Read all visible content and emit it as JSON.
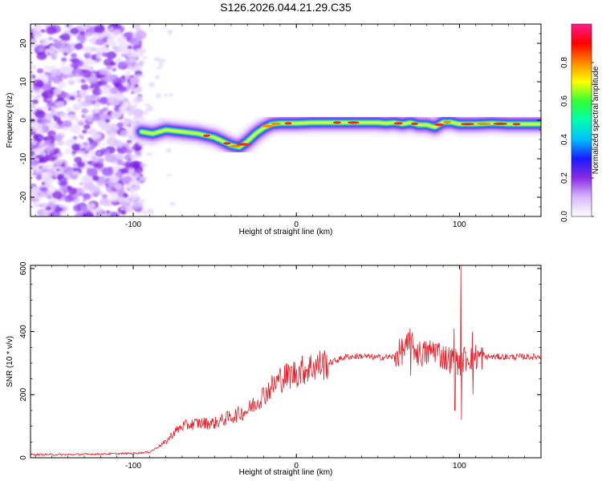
{
  "title": "S126.2026.044.21.29.C35",
  "chart_data": [
    {
      "type": "heatmap",
      "title": "S126.2026.044.21.29.C35",
      "xlabel": "Height of straight line (km)",
      "ylabel": "Frequency (Hz)",
      "xlim": [
        -163,
        150
      ],
      "ylim": [
        -25,
        25
      ],
      "xticks": [
        -100,
        0,
        100
      ],
      "yticks": [
        -20,
        -10,
        0,
        10,
        20
      ],
      "colorbar": {
        "label": "Normalized spectral amplitude",
        "range": [
          0,
          1
        ],
        "ticks": [
          0.0,
          0.2,
          0.4,
          0.6,
          0.8
        ],
        "colors": [
          "#ffffff",
          "#d9b8ff",
          "#8a2be2",
          "#1a1aff",
          "#00bfff",
          "#00ffb0",
          "#33ff33",
          "#ffff00",
          "#ff8800",
          "#ff0000",
          "#ff1a8c"
        ]
      },
      "noise_region_x": [
        -163,
        -95
      ],
      "ridge": {
        "x": [
          -95,
          -88,
          -80,
          -70,
          -60,
          -50,
          -45,
          -40,
          -35,
          -30,
          -25,
          -20,
          -15,
          -10,
          0,
          10,
          20,
          30,
          40,
          50,
          55,
          60,
          65,
          70,
          75,
          80,
          85,
          90,
          95,
          100,
          110,
          120,
          130,
          140,
          150
        ],
        "frequency": [
          -3,
          -3.5,
          -2.5,
          -3,
          -3.5,
          -4.5,
          -5.5,
          -6.5,
          -7,
          -5.5,
          -3.5,
          -2,
          -1,
          -0.8,
          -0.8,
          -0.6,
          -0.6,
          -0.6,
          -0.6,
          -0.6,
          -0.8,
          -0.6,
          -1,
          -0.6,
          -1.2,
          -1.2,
          -1.8,
          -0.5,
          -0.5,
          -1,
          -1,
          -0.8,
          -1,
          -1,
          -1
        ]
      }
    },
    {
      "type": "line",
      "xlabel": "Height of straight line (km)",
      "ylabel": "SNR (10 * v/v)",
      "xlim": [
        -163,
        150
      ],
      "ylim": [
        0,
        610
      ],
      "xticks": [
        -100,
        0,
        100
      ],
      "yticks": [
        0,
        200,
        400,
        600
      ],
      "series": [
        {
          "name": "SNR",
          "color": "#e8202a",
          "x": [
            -163,
            -140,
            -120,
            -100,
            -90,
            -80,
            -75,
            -70,
            -60,
            -50,
            -40,
            -30,
            -20,
            -10,
            0,
            10,
            20,
            30,
            40,
            50,
            60,
            65,
            70,
            75,
            80,
            85,
            90,
            95,
            100,
            105,
            110,
            120,
            130,
            140,
            150
          ],
          "values": [
            10,
            10,
            12,
            14,
            18,
            50,
            80,
            100,
            110,
            110,
            130,
            150,
            200,
            250,
            270,
            290,
            300,
            320,
            322,
            318,
            320,
            340,
            360,
            330,
            330,
            345,
            320,
            310,
            300,
            320,
            320,
            320,
            320,
            320,
            320
          ]
        }
      ],
      "spikes": [
        {
          "x": 70,
          "values": [
            260,
            410
          ]
        },
        {
          "x": 101,
          "values": [
            120,
            610
          ]
        },
        {
          "x": 97,
          "values": [
            150,
            410
          ]
        },
        {
          "x": 108,
          "values": [
            200,
            400
          ]
        }
      ]
    }
  ]
}
